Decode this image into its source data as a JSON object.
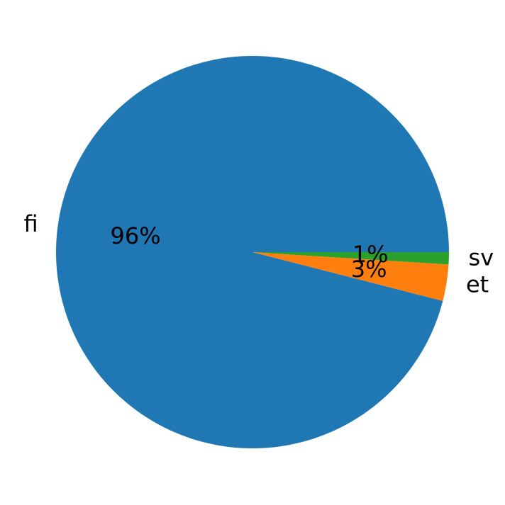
{
  "chart_data": {
    "type": "pie",
    "categories": [
      "fi",
      "et",
      "sv"
    ],
    "values": [
      96,
      3,
      1
    ],
    "value_labels": [
      "96%",
      "3%",
      "1%"
    ],
    "colors": [
      "#1f77b4",
      "#ff7f0e",
      "#2ca02c"
    ]
  }
}
